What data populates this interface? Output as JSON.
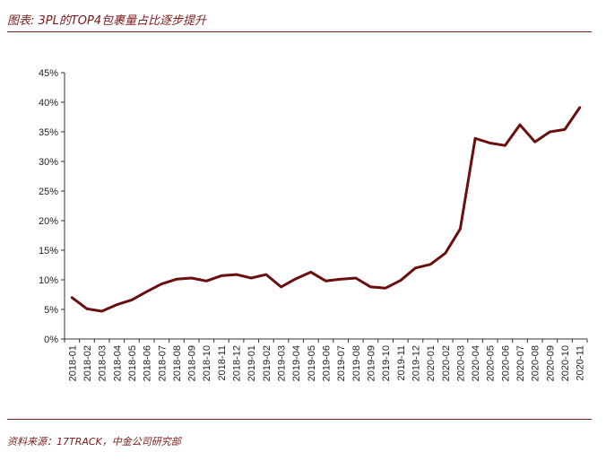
{
  "header": {
    "title": "图表: 3PL的TOP4包裹量占比逐步提升"
  },
  "footer": {
    "source": "资料来源：17TRACK，中金公司研究部"
  },
  "colors": {
    "accent": "#7a1a1a",
    "series_line": "#6b0e0e",
    "axis": "#333333"
  },
  "chart_data": {
    "type": "line",
    "title": "图表: 3PL的TOP4包裹量占比逐步提升",
    "xlabel": "",
    "ylabel": "",
    "ylim": [
      0,
      45
    ],
    "y_ticks": [
      "0%",
      "5%",
      "10%",
      "15%",
      "20%",
      "25%",
      "30%",
      "35%",
      "40%",
      "45%"
    ],
    "y_tick_values": [
      0,
      5,
      10,
      15,
      20,
      25,
      30,
      35,
      40,
      45
    ],
    "grid": false,
    "legend": "none",
    "categories": [
      "2018-01",
      "2018-02",
      "2018-03",
      "2018-04",
      "2018-05",
      "2018-06",
      "2018-07",
      "2018-08",
      "2018-09",
      "2018-10",
      "2018-11",
      "2018-12",
      "2019-01",
      "2019-02",
      "2019-03",
      "2019-04",
      "2019-05",
      "2019-06",
      "2019-07",
      "2019-08",
      "2019-09",
      "2019-10",
      "2019-11",
      "2019-12",
      "2020-01",
      "2020-02",
      "2020-03",
      "2020-04",
      "2020-05",
      "2020-06",
      "2020-07",
      "2020-08",
      "2020-09",
      "2020-10",
      "2020-11"
    ],
    "series": [
      {
        "values": [
          7.0,
          5.1,
          4.7,
          5.8,
          6.6,
          8.0,
          9.3,
          10.1,
          10.3,
          9.8,
          10.7,
          10.9,
          10.3,
          10.9,
          8.8,
          10.2,
          11.3,
          9.8,
          10.1,
          10.3,
          8.8,
          8.6,
          9.9,
          12.0,
          12.6,
          14.5,
          18.6,
          33.9,
          33.1,
          32.7,
          36.2,
          33.3,
          35.0,
          35.4,
          39.1
        ]
      }
    ]
  }
}
